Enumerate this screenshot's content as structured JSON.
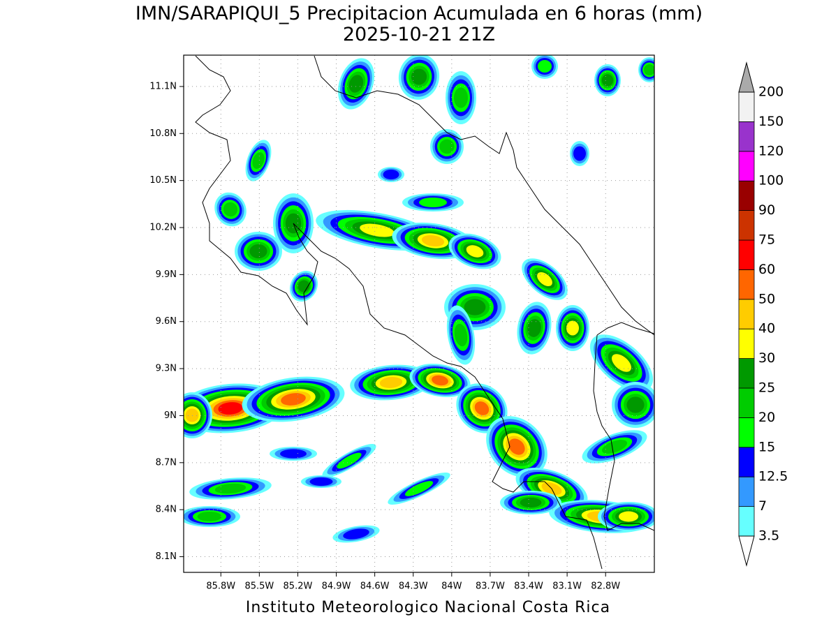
{
  "title": "IMN/SARAPIQUI_5 Precipitacion Acumulada en 6 horas (mm)",
  "subtitle": "2025-10-21 21Z",
  "footer": "Instituto Meteorologico Nacional Costa Rica",
  "map": {
    "xlim": [
      -86.09,
      -82.42
    ],
    "ylim": [
      8.0,
      11.3
    ],
    "xticks": [
      {
        "value": -85.8,
        "label": "85.8W"
      },
      {
        "value": -85.5,
        "label": "85.5W"
      },
      {
        "value": -85.2,
        "label": "85.2W"
      },
      {
        "value": -84.9,
        "label": "84.9W"
      },
      {
        "value": -84.6,
        "label": "84.6W"
      },
      {
        "value": -84.3,
        "label": "84.3W"
      },
      {
        "value": -84.0,
        "label": "84W"
      },
      {
        "value": -83.7,
        "label": "83.7W"
      },
      {
        "value": -83.4,
        "label": "83.4W"
      },
      {
        "value": -83.1,
        "label": "83.1W"
      },
      {
        "value": -82.8,
        "label": "82.8W"
      }
    ],
    "yticks": [
      {
        "value": 8.1,
        "label": "8.1N"
      },
      {
        "value": 8.4,
        "label": "8.4N"
      },
      {
        "value": 8.7,
        "label": "8.7N"
      },
      {
        "value": 9.0,
        "label": "9N"
      },
      {
        "value": 9.3,
        "label": "9.3N"
      },
      {
        "value": 9.6,
        "label": "9.6N"
      },
      {
        "value": 9.9,
        "label": "9.9N"
      },
      {
        "value": 10.2,
        "label": "10.2N"
      },
      {
        "value": 10.5,
        "label": "10.5N"
      },
      {
        "value": 10.8,
        "label": "10.8N"
      },
      {
        "value": 11.1,
        "label": "11.1N"
      }
    ],
    "grid": true
  },
  "colorbar": {
    "levels": [
      3.5,
      7,
      12.5,
      15,
      20,
      25,
      30,
      40,
      50,
      60,
      75,
      90,
      100,
      120,
      150,
      200
    ],
    "colors": [
      "#66ffff",
      "#3399ff",
      "#0000ff",
      "#00ff00",
      "#00cc00",
      "#009900",
      "#ffff00",
      "#ffcc00",
      "#ff6600",
      "#ff0000",
      "#cc3300",
      "#990000",
      "#ff00ff",
      "#9933cc",
      "#f2f2f2"
    ],
    "over_color": "#aaaaaa"
  }
}
